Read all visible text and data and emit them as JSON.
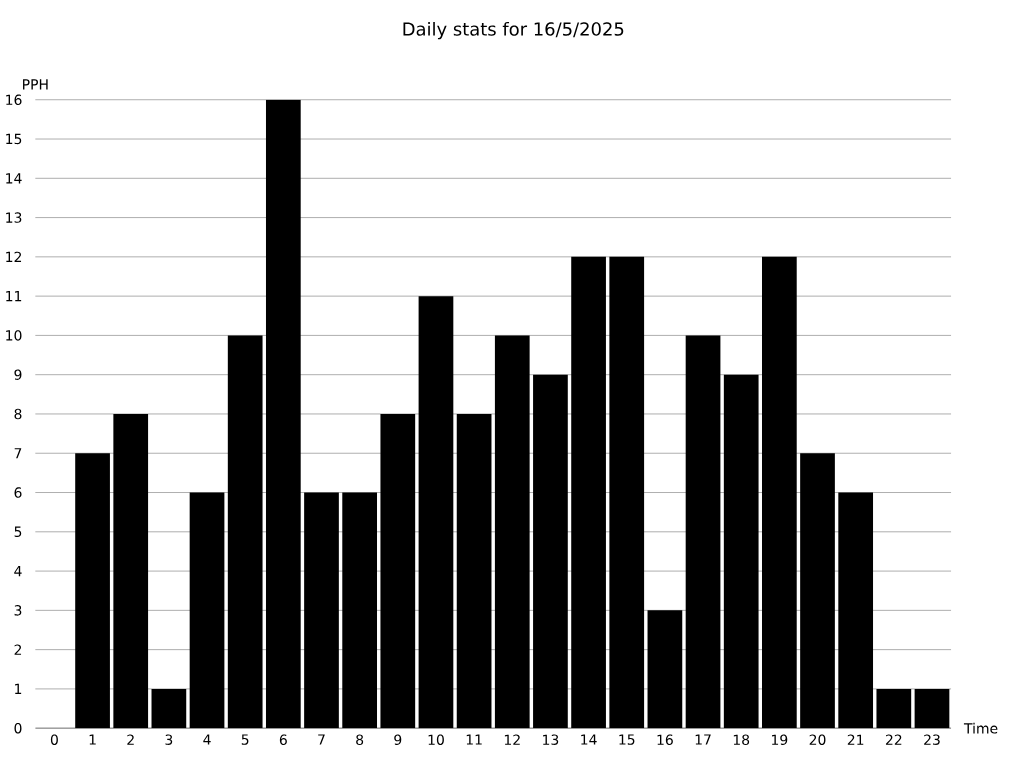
{
  "chart_data": {
    "type": "bar",
    "title": "Daily stats for 16/5/2025",
    "xlabel": "Time",
    "ylabel": "PPH",
    "categories": [
      "0",
      "1",
      "2",
      "3",
      "4",
      "5",
      "6",
      "7",
      "8",
      "9",
      "10",
      "11",
      "12",
      "13",
      "14",
      "15",
      "16",
      "17",
      "18",
      "19",
      "20",
      "21",
      "22",
      "23"
    ],
    "values": [
      0,
      7,
      8,
      1,
      6,
      10,
      16,
      6,
      6,
      8,
      11,
      8,
      10,
      9,
      12,
      12,
      3,
      10,
      9,
      12,
      7,
      6,
      1,
      1
    ],
    "color": "#000000",
    "ylim": [
      0,
      16
    ],
    "yticks": [
      0,
      1,
      2,
      3,
      4,
      5,
      6,
      7,
      8,
      9,
      10,
      11,
      12,
      13,
      14,
      15,
      16
    ],
    "grid": "y"
  }
}
